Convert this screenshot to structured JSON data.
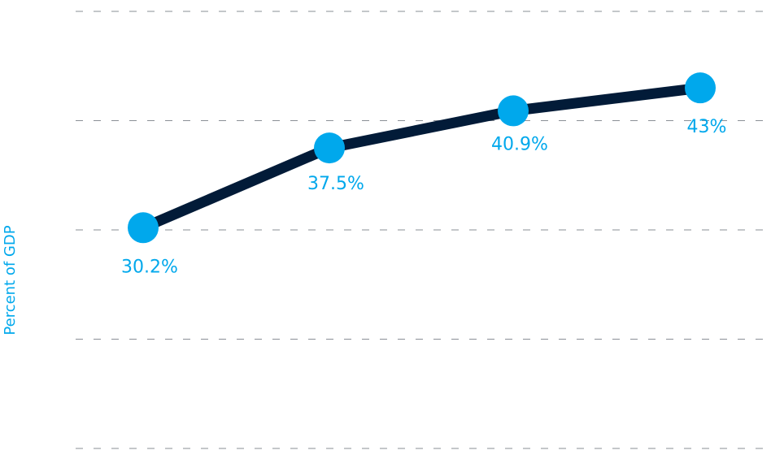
{
  "chart_data": {
    "type": "line",
    "title": "",
    "xlabel": "",
    "ylabel": "Percent of GDP",
    "x": [
      1,
      2,
      3,
      4
    ],
    "series": [
      {
        "values": [
          30.2,
          37.5,
          40.9,
          43
        ],
        "labels": [
          "30.2%",
          "37.5%",
          "40.9%",
          "43%"
        ]
      }
    ],
    "ylim": [
      10,
      50
    ],
    "grid": true,
    "legend": "none"
  },
  "colors": {
    "line": "#021b38",
    "marker": "#00a8ec",
    "label": "#00a8ec",
    "axis_label": "#00a8ec",
    "grid": "#8a8f96"
  }
}
